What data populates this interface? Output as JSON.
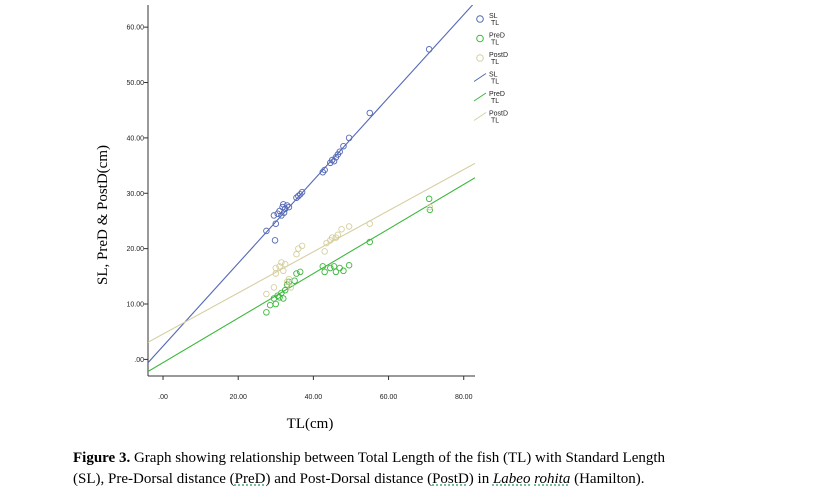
{
  "chart_data": {
    "type": "scatter",
    "xlabel": "TL(cm)",
    "ylabel": "SL, PreD & PostD(cm)",
    "xlim": [
      -4,
      83
    ],
    "ylim": [
      -3,
      64
    ],
    "x_ticks": [
      0,
      20,
      40,
      60,
      80
    ],
    "x_tick_labels": [
      ".00",
      "20.00",
      "40.00",
      "60.00",
      "80.00"
    ],
    "y_ticks": [
      0,
      10,
      20,
      30,
      40,
      50,
      60
    ],
    "y_tick_labels": [
      ".00",
      "10.00",
      "20.00",
      "30.00",
      "40.00",
      "50.00",
      "60.00"
    ],
    "grid": false,
    "legend_position": "right",
    "legend": [
      {
        "kind": "marker",
        "text1": "SL",
        "text2": "TL",
        "color": "#5468b6"
      },
      {
        "kind": "marker",
        "text1": "PreD",
        "text2": "TL",
        "color": "#3cb83c"
      },
      {
        "kind": "marker",
        "text1": "PostD",
        "text2": "TL",
        "color": "#d6cfa0"
      },
      {
        "kind": "line",
        "text1": "SL",
        "text2": "TL",
        "color": "#5468b6"
      },
      {
        "kind": "line",
        "text1": "PreD",
        "text2": "TL",
        "color": "#3cb83c"
      },
      {
        "kind": "line",
        "text1": "PostD",
        "text2": "TL",
        "color": "#d6cfa0"
      }
    ],
    "series": [
      {
        "name": "SL",
        "color": "#5468b6",
        "points": [
          [
            27.5,
            23.2
          ],
          [
            29.5,
            26.0
          ],
          [
            29.8,
            21.5
          ],
          [
            30.0,
            24.5
          ],
          [
            30.5,
            26.3
          ],
          [
            31.0,
            26.8
          ],
          [
            31.5,
            26.0
          ],
          [
            31.8,
            27.5
          ],
          [
            32.0,
            28.0
          ],
          [
            32.2,
            26.5
          ],
          [
            32.5,
            27.2
          ],
          [
            33.0,
            27.8
          ],
          [
            33.5,
            27.5
          ],
          [
            35.5,
            29.2
          ],
          [
            36.0,
            29.5
          ],
          [
            36.5,
            29.8
          ],
          [
            37.0,
            30.2
          ],
          [
            42.5,
            33.8
          ],
          [
            43.0,
            34.2
          ],
          [
            44.5,
            35.5
          ],
          [
            45.0,
            36.0
          ],
          [
            45.5,
            35.8
          ],
          [
            46.0,
            36.5
          ],
          [
            46.5,
            37.0
          ],
          [
            47.0,
            37.5
          ],
          [
            48.0,
            38.5
          ],
          [
            49.5,
            40.0
          ],
          [
            55.0,
            44.5
          ],
          [
            70.8,
            56.0
          ]
        ],
        "fit": [
          [
            -4,
            -0.6
          ],
          [
            83,
            64.5
          ]
        ]
      },
      {
        "name": "PreD",
        "color": "#3cb83c",
        "points": [
          [
            27.5,
            8.5
          ],
          [
            28.5,
            9.8
          ],
          [
            29.5,
            11.0
          ],
          [
            30.0,
            10.0
          ],
          [
            30.5,
            11.5
          ],
          [
            31.0,
            11.2
          ],
          [
            31.5,
            12.0
          ],
          [
            32.0,
            11.0
          ],
          [
            32.5,
            12.5
          ],
          [
            33.0,
            13.5
          ],
          [
            33.5,
            14.0
          ],
          [
            35.0,
            14.2
          ],
          [
            35.5,
            15.5
          ],
          [
            36.5,
            15.8
          ],
          [
            42.5,
            16.8
          ],
          [
            43.0,
            15.8
          ],
          [
            44.5,
            16.5
          ],
          [
            45.5,
            16.8
          ],
          [
            46.0,
            15.8
          ],
          [
            47.0,
            16.5
          ],
          [
            48.0,
            16.0
          ],
          [
            49.5,
            17.0
          ],
          [
            55.0,
            21.2
          ],
          [
            70.8,
            29.0
          ],
          [
            71.0,
            27.0
          ]
        ],
        "fit": [
          [
            -4,
            -2.2
          ],
          [
            83,
            32.8
          ]
        ]
      },
      {
        "name": "PostD",
        "color": "#d6cfa0",
        "points": [
          [
            27.5,
            11.8
          ],
          [
            29.5,
            13.0
          ],
          [
            30.0,
            15.5
          ],
          [
            30.0,
            16.5
          ],
          [
            31.0,
            16.8
          ],
          [
            31.5,
            17.5
          ],
          [
            32.0,
            16.0
          ],
          [
            32.5,
            17.2
          ],
          [
            33.0,
            14.0
          ],
          [
            33.5,
            14.5
          ],
          [
            34.0,
            13.0
          ],
          [
            35.5,
            19.0
          ],
          [
            36.0,
            20.0
          ],
          [
            37.0,
            20.5
          ],
          [
            43.0,
            19.5
          ],
          [
            43.5,
            21.0
          ],
          [
            44.5,
            21.5
          ],
          [
            45.0,
            22.0
          ],
          [
            46.0,
            22.0
          ],
          [
            46.5,
            22.5
          ],
          [
            47.5,
            23.5
          ],
          [
            49.5,
            24.0
          ],
          [
            55.0,
            24.5
          ],
          [
            71.0,
            27.5
          ]
        ],
        "fit": [
          [
            -4,
            3.1
          ],
          [
            83,
            35.4
          ]
        ]
      }
    ]
  },
  "caption": {
    "figure_label": "Figure 3.",
    "line1_rest": " Graph showing relationship between Total Length of the fish (TL) with Standard Length",
    "line2_a": "(SL), Pre-Dorsal distance (",
    "abbr_pred": "PreD",
    "line2_b": ") and Post-Dorsal distance (",
    "abbr_postd": "PostD",
    "line2_c": ") in ",
    "species_1": "Labeo",
    "species_space": " ",
    "species_2": "rohita",
    "line2_d": " (Hamilton)."
  }
}
